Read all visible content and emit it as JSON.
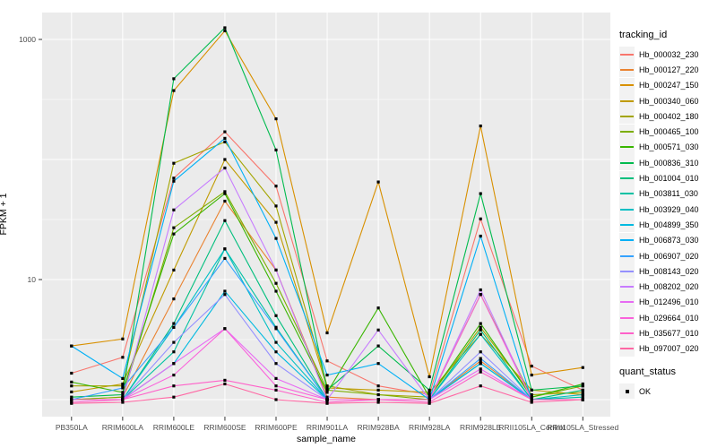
{
  "chart_data": {
    "type": "line",
    "title": "",
    "xlabel": "sample_name",
    "ylabel": "FPKM + 1",
    "y_scale": "log10",
    "y_tick_values": [
      10,
      1000
    ],
    "y_gridline_values": [
      1,
      10,
      100,
      1000
    ],
    "y_minor_gridline_values": [
      3.162,
      31.62,
      316.2
    ],
    "ylim": [
      0.72,
      1700
    ],
    "grid": "on",
    "legend_position": "right",
    "panel_bg": "#EBEBEB",
    "grid_color": "#FFFFFF",
    "tick_label_color": "#4D4D4D",
    "point_color": "#000000",
    "categories": [
      "PB350LA",
      "RRIM600LA",
      "RRIM600LE",
      "RRIM600SE",
      "RRIM600PE",
      "RRIM901LA",
      "RRIM928BA",
      "RRIM928LA",
      "RRIM928LE",
      "RRII105LA_Control",
      "RRII105LA_Stressed"
    ],
    "legend": {
      "color_title": "tracking_id",
      "shape_title": "quant_status",
      "shape_items": [
        "OK"
      ]
    },
    "series": [
      {
        "name": "Hb_000032_230",
        "color": "#F8766D",
        "values": [
          1.66,
          2.25,
          70,
          170,
          60,
          2.1,
          1.3,
          1.1,
          32,
          1.9,
          1.2
        ]
      },
      {
        "name": "Hb_000127_220",
        "color": "#EA8331",
        "values": [
          1.0,
          1.05,
          6.9,
          45,
          12,
          1.05,
          1.0,
          1.0,
          2.1,
          1.0,
          1.0
        ]
      },
      {
        "name": "Hb_000247_150",
        "color": "#D89000",
        "values": [
          2.8,
          3.2,
          375,
          1180,
          218,
          3.6,
          65,
          1.55,
          190,
          1.6,
          1.85
        ]
      },
      {
        "name": "Hb_000340_060",
        "color": "#C09B00",
        "values": [
          1.16,
          1.35,
          12,
          100,
          30,
          1.25,
          1.2,
          1.15,
          3.5,
          1.2,
          1.1
        ]
      },
      {
        "name": "Hb_000402_180",
        "color": "#A3A500",
        "values": [
          1.3,
          1.3,
          93,
          140,
          41,
          1.3,
          1.1,
          1.05,
          4.0,
          1.1,
          1.15
        ]
      },
      {
        "name": "Hb_000465_100",
        "color": "#7CAE00",
        "values": [
          1.0,
          1.05,
          27,
          54,
          9.3,
          1.2,
          1.1,
          1.0,
          7.5,
          1.05,
          1.3
        ]
      },
      {
        "name": "Hb_000571_030",
        "color": "#39B600",
        "values": [
          1.4,
          1.15,
          24,
          52,
          8.0,
          1.15,
          5.8,
          1.05,
          4.3,
          1.05,
          1.35
        ]
      },
      {
        "name": "Hb_000836_310",
        "color": "#00BB4E",
        "values": [
          1.05,
          1.1,
          470,
          1250,
          120,
          1.2,
          2.8,
          1.2,
          52,
          1.2,
          1.3
        ]
      },
      {
        "name": "Hb_001004_010",
        "color": "#00BF7D",
        "values": [
          1.0,
          1.0,
          4.3,
          31,
          5.0,
          1.0,
          1.0,
          1.0,
          3.8,
          1.0,
          1.2
        ]
      },
      {
        "name": "Hb_003811_030",
        "color": "#00C1A3",
        "values": [
          1.0,
          1.0,
          2.5,
          18,
          4.0,
          1.0,
          1.0,
          1.0,
          2.0,
          1.0,
          1.05
        ]
      },
      {
        "name": "Hb_003929_040",
        "color": "#00BFC4",
        "values": [
          1.0,
          1.0,
          4.0,
          18,
          3.0,
          1.0,
          1.0,
          1.0,
          3.5,
          1.0,
          1.1
        ]
      },
      {
        "name": "Hb_004899_350",
        "color": "#00BAE0",
        "values": [
          1.0,
          1.0,
          2.0,
          8.0,
          2.5,
          1.0,
          1.0,
          1.0,
          2.0,
          1.0,
          1.0
        ]
      },
      {
        "name": "Hb_006873_030",
        "color": "#00B0F6",
        "values": [
          2.8,
          1.5,
          66,
          150,
          22,
          1.6,
          2.0,
          1.0,
          23,
          1.0,
          1.0
        ]
      },
      {
        "name": "Hb_006907_020",
        "color": "#35A2FF",
        "values": [
          1.0,
          1.25,
          4.0,
          15,
          3.9,
          1.0,
          1.0,
          1.0,
          2.2,
          1.0,
          1.0
        ]
      },
      {
        "name": "Hb_008143_020",
        "color": "#9590FF",
        "values": [
          1.0,
          1.0,
          3.0,
          7.5,
          2.0,
          1.0,
          1.0,
          1.0,
          2.5,
          1.0,
          1.0
        ]
      },
      {
        "name": "Hb_008202_020",
        "color": "#C77CFF",
        "values": [
          1.0,
          1.0,
          38,
          85,
          12,
          1.0,
          3.8,
          1.0,
          8.2,
          1.0,
          1.0
        ]
      },
      {
        "name": "Hb_012496_010",
        "color": "#E76BF3",
        "values": [
          1.0,
          1.0,
          2.0,
          3.9,
          1.5,
          1.0,
          1.0,
          1.0,
          1.8,
          1.0,
          1.0
        ]
      },
      {
        "name": "Hb_029664_010",
        "color": "#FA62DB",
        "values": [
          1.0,
          1.0,
          1.6,
          3.9,
          1.3,
          1.0,
          1.0,
          1.0,
          7.5,
          1.0,
          1.0
        ]
      },
      {
        "name": "Hb_035677_010",
        "color": "#FF61C9",
        "values": [
          0.95,
          1.0,
          1.3,
          1.45,
          1.2,
          0.95,
          1.0,
          0.95,
          1.7,
          1.0,
          1.0
        ]
      },
      {
        "name": "Hb_097007_020",
        "color": "#FF67A4",
        "values": [
          0.93,
          0.95,
          1.05,
          1.35,
          1.0,
          0.93,
          0.95,
          0.93,
          1.3,
          0.95,
          1.0
        ]
      }
    ]
  }
}
